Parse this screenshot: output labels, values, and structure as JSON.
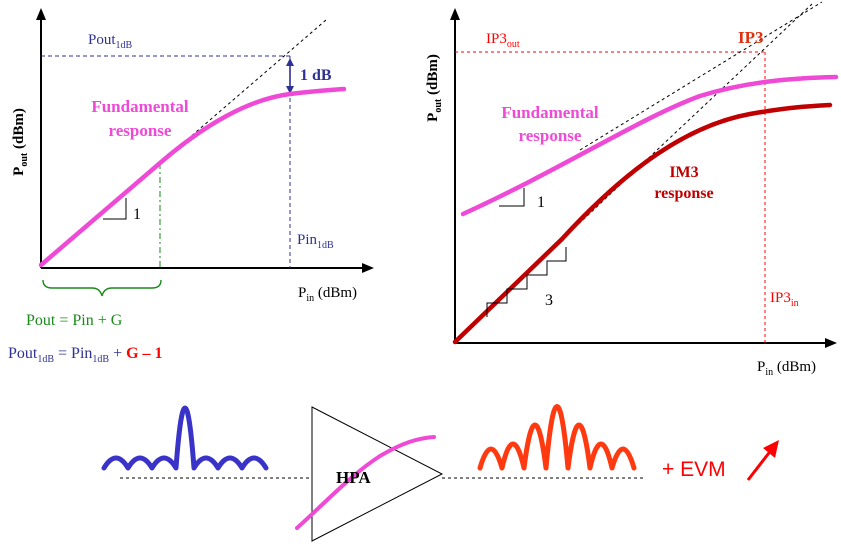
{
  "colors": {
    "fundamental": "#ee4ad6",
    "im3": "#c00000",
    "pout1db": "#2e3192",
    "ip3": "#ff0000",
    "ip3_text": "#e03010",
    "linear_gain": "#1a8a1a",
    "input_signal": "#3a33c8",
    "output_signal": "#ff3a10",
    "minus_one": "#ff0000"
  },
  "left_plot": {
    "y_axis": {
      "p": "P",
      "sub": "out",
      "unit": " (dBm)"
    },
    "x_axis": {
      "p": "P",
      "sub": "in",
      "unit": " (dBm)"
    },
    "pout1db": {
      "main": "Pout",
      "sub": "1dB"
    },
    "pin1db": {
      "main": "Pin",
      "sub": "1dB"
    },
    "compression_label": "1 dB",
    "curve_label_line1": "Fundamental",
    "curve_label_line2": "response",
    "slope_label": "1",
    "linear_equation": "Pout = Pin + G",
    "equation2": {
      "pout": "Pout",
      "pout_sub": "1dB",
      "equals": " = ",
      "pin": "Pin",
      "pin_sub": "1dB",
      "plus": " + ",
      "gain_minus_one": "G – 1"
    }
  },
  "right_plot": {
    "y_axis": {
      "p": "P",
      "sub": "out",
      "unit": " (dBm)"
    },
    "x_axis": {
      "p": "P",
      "sub": "in",
      "unit": " (dBm)"
    },
    "ip3out": {
      "main": "IP3",
      "sub": "out"
    },
    "ip3in": {
      "main": "IP3",
      "sub": "in"
    },
    "ip3_label": "IP3",
    "fund_label_line1": "Fundamental",
    "fund_label_line2": "response",
    "im3_label_line1": "IM3",
    "im3_label_line2": "response",
    "slope1_label": "1",
    "slope3_label": "3"
  },
  "bottom": {
    "amplifier_label": "HPA",
    "evm_label": "+ EVM"
  }
}
